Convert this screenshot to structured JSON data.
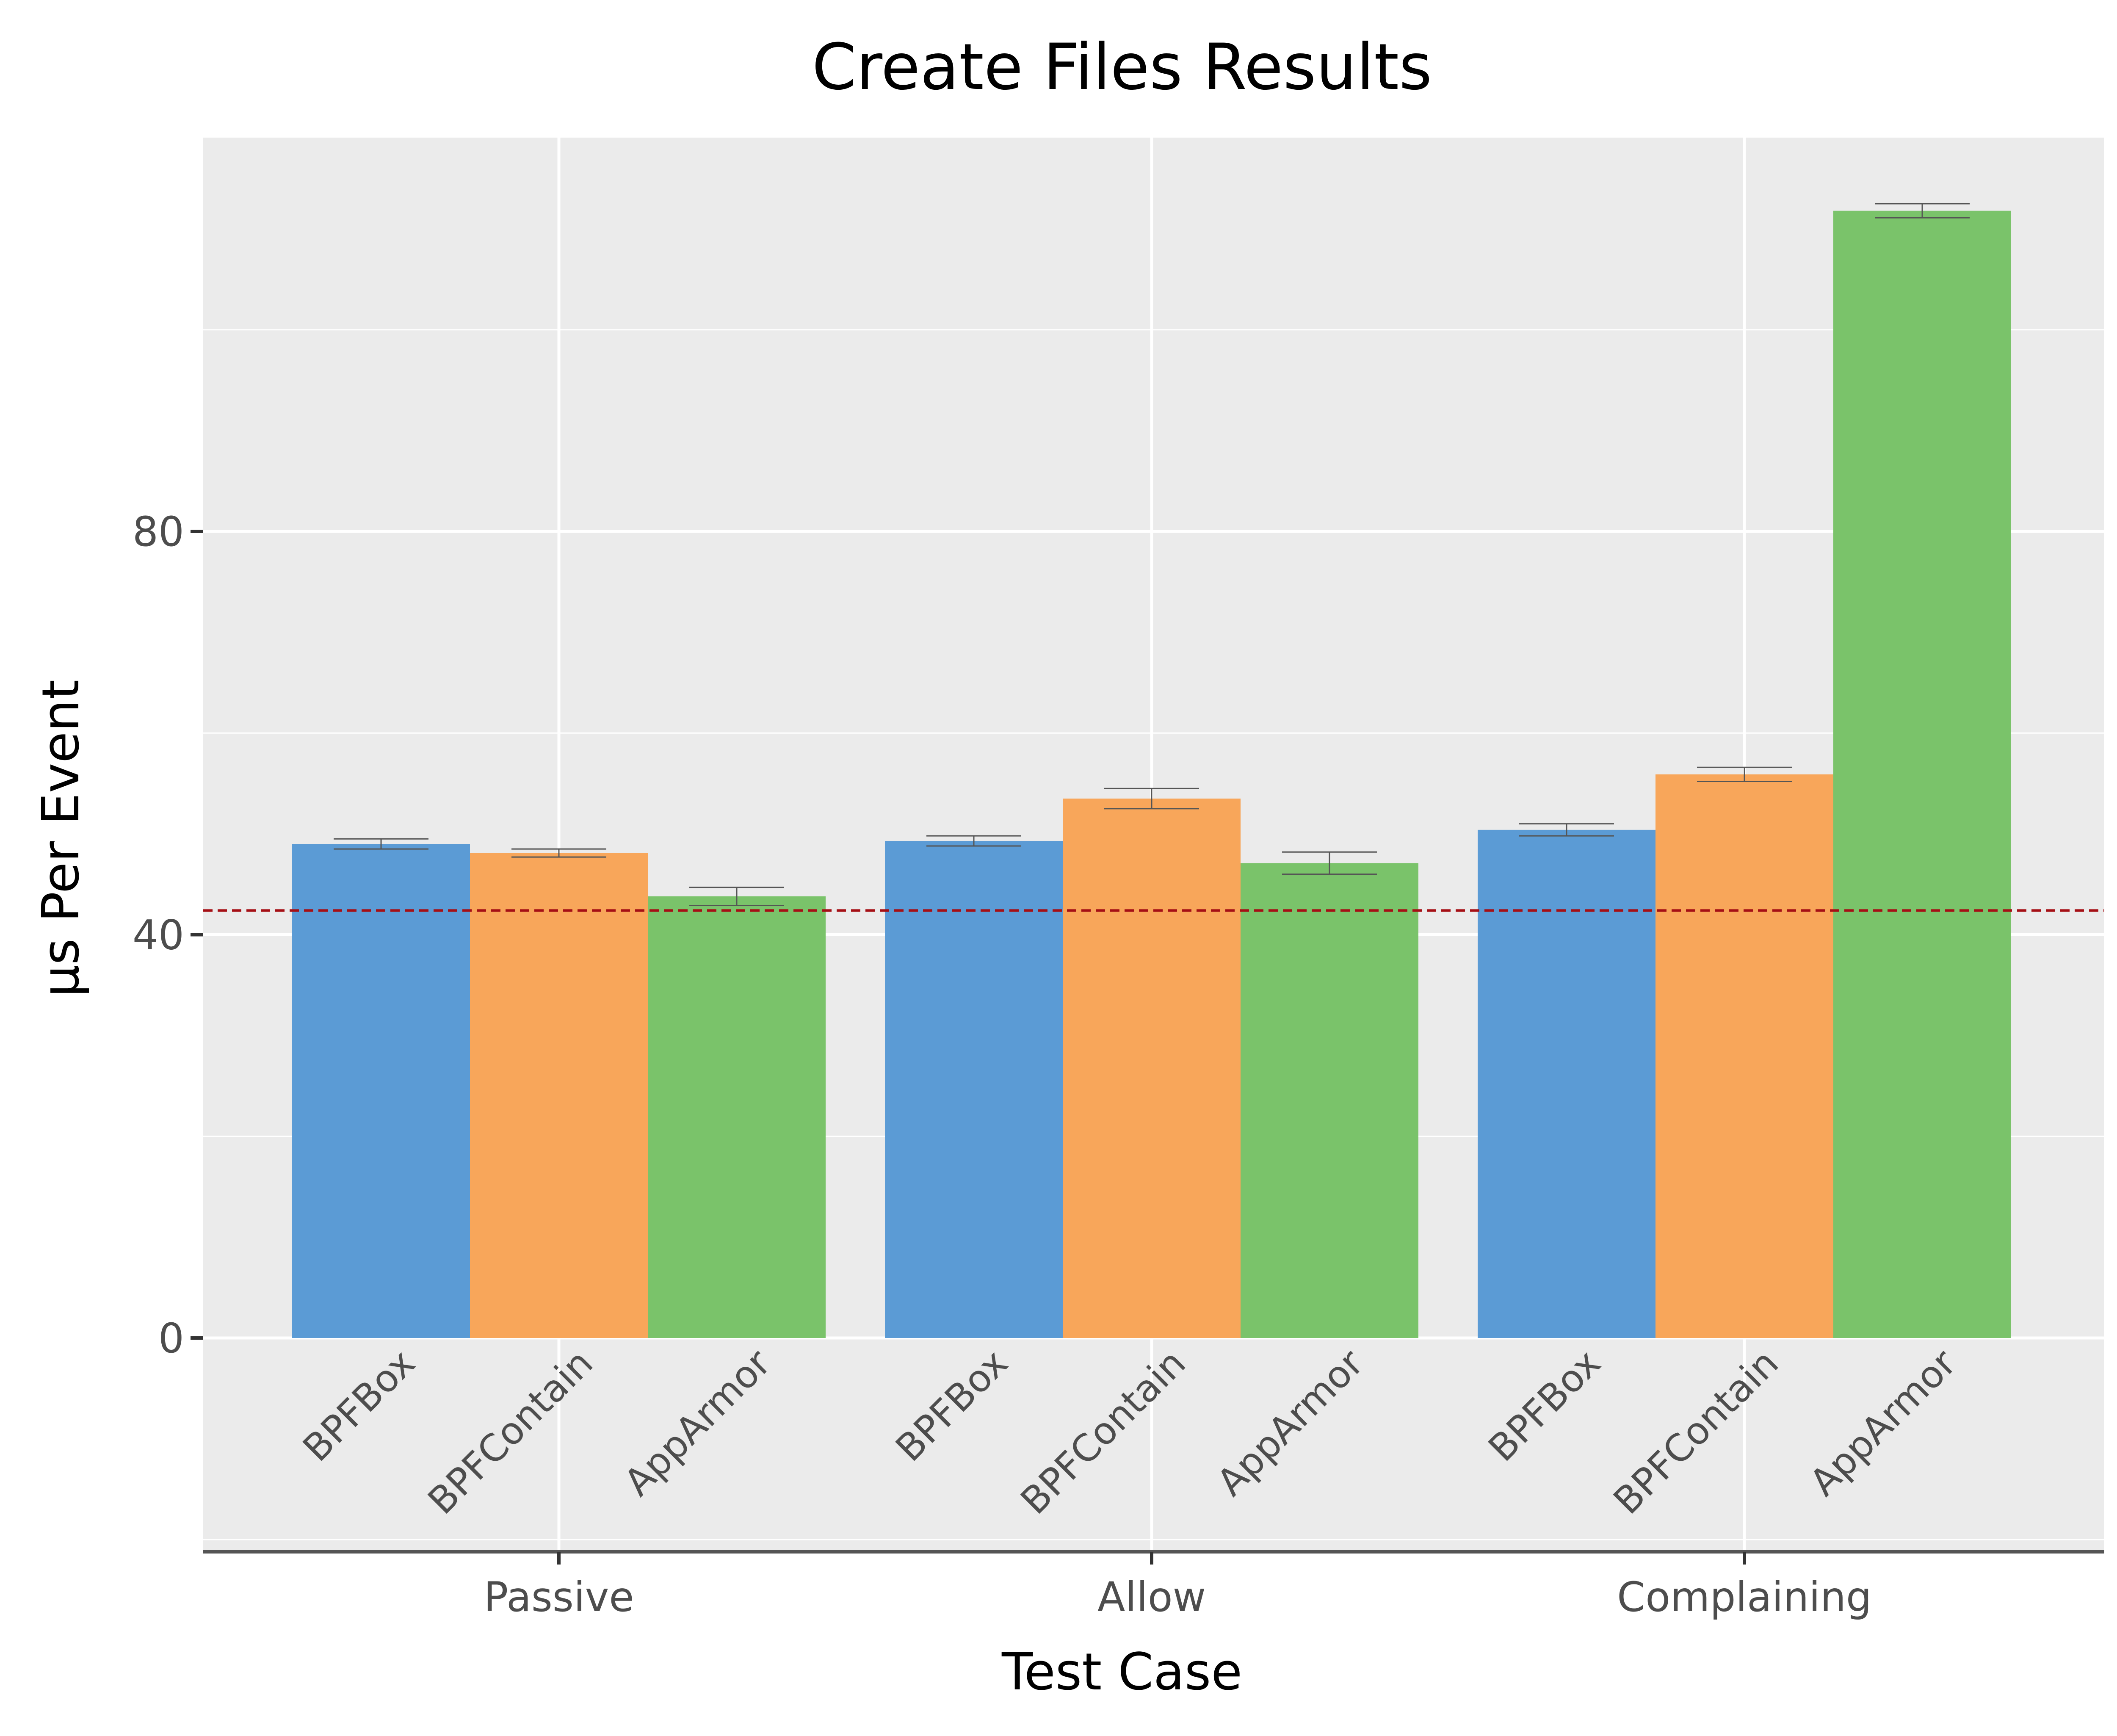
{
  "chart_data": {
    "type": "bar",
    "title": "Create Files Results",
    "xlabel": "Test Case",
    "ylabel": "µs Per Event",
    "categories": [
      "Passive",
      "Allow",
      "Complaining"
    ],
    "series": [
      {
        "name": "BPFBox",
        "color": "#5b9bd5",
        "values": [
          49.0,
          49.3,
          50.4
        ],
        "errors": [
          0.5,
          0.5,
          0.6
        ]
      },
      {
        "name": "BPFContain",
        "color": "#f8a65a",
        "values": [
          48.1,
          53.5,
          55.9
        ],
        "errors": [
          0.4,
          1.0,
          0.7
        ]
      },
      {
        "name": "AppArmor",
        "color": "#7ac36a",
        "values": [
          43.8,
          47.1,
          111.8
        ],
        "errors": [
          0.9,
          1.1,
          0.7
        ]
      }
    ],
    "yticks": [
      0,
      40,
      80
    ],
    "ylim": [
      -20,
      118.5
    ],
    "reference_line": {
      "value": 42.4,
      "color": "#a50f15",
      "style": "dashed"
    },
    "grid": true,
    "legend": "none"
  }
}
